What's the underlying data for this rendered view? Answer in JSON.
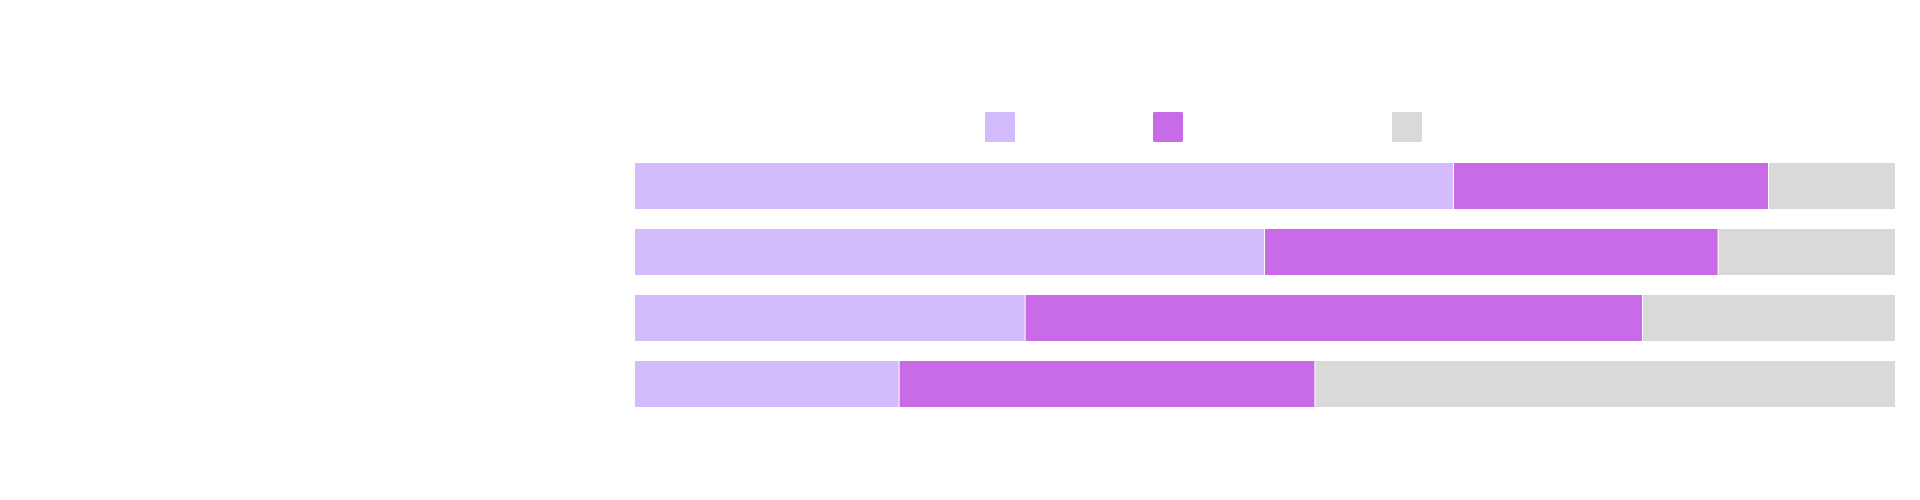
{
  "chart_data": {
    "type": "bar",
    "orientation": "horizontal",
    "stacked": true,
    "normalized": true,
    "categories": [
      "",
      "",
      "",
      ""
    ],
    "series": [
      {
        "values": [
          65,
          50,
          31,
          21
        ],
        "color": "#d4bbfc"
      },
      {
        "values": [
          25,
          36,
          49,
          33
        ],
        "color": "#c96be6"
      },
      {
        "values": [
          10,
          14,
          20,
          46
        ],
        "color": "#d9d9d9"
      }
    ],
    "xlim": [
      0,
      100
    ],
    "grid": false,
    "legend": {
      "position": "top",
      "has_labels": false
    },
    "title": "",
    "xlabel": "",
    "ylabel": ""
  }
}
